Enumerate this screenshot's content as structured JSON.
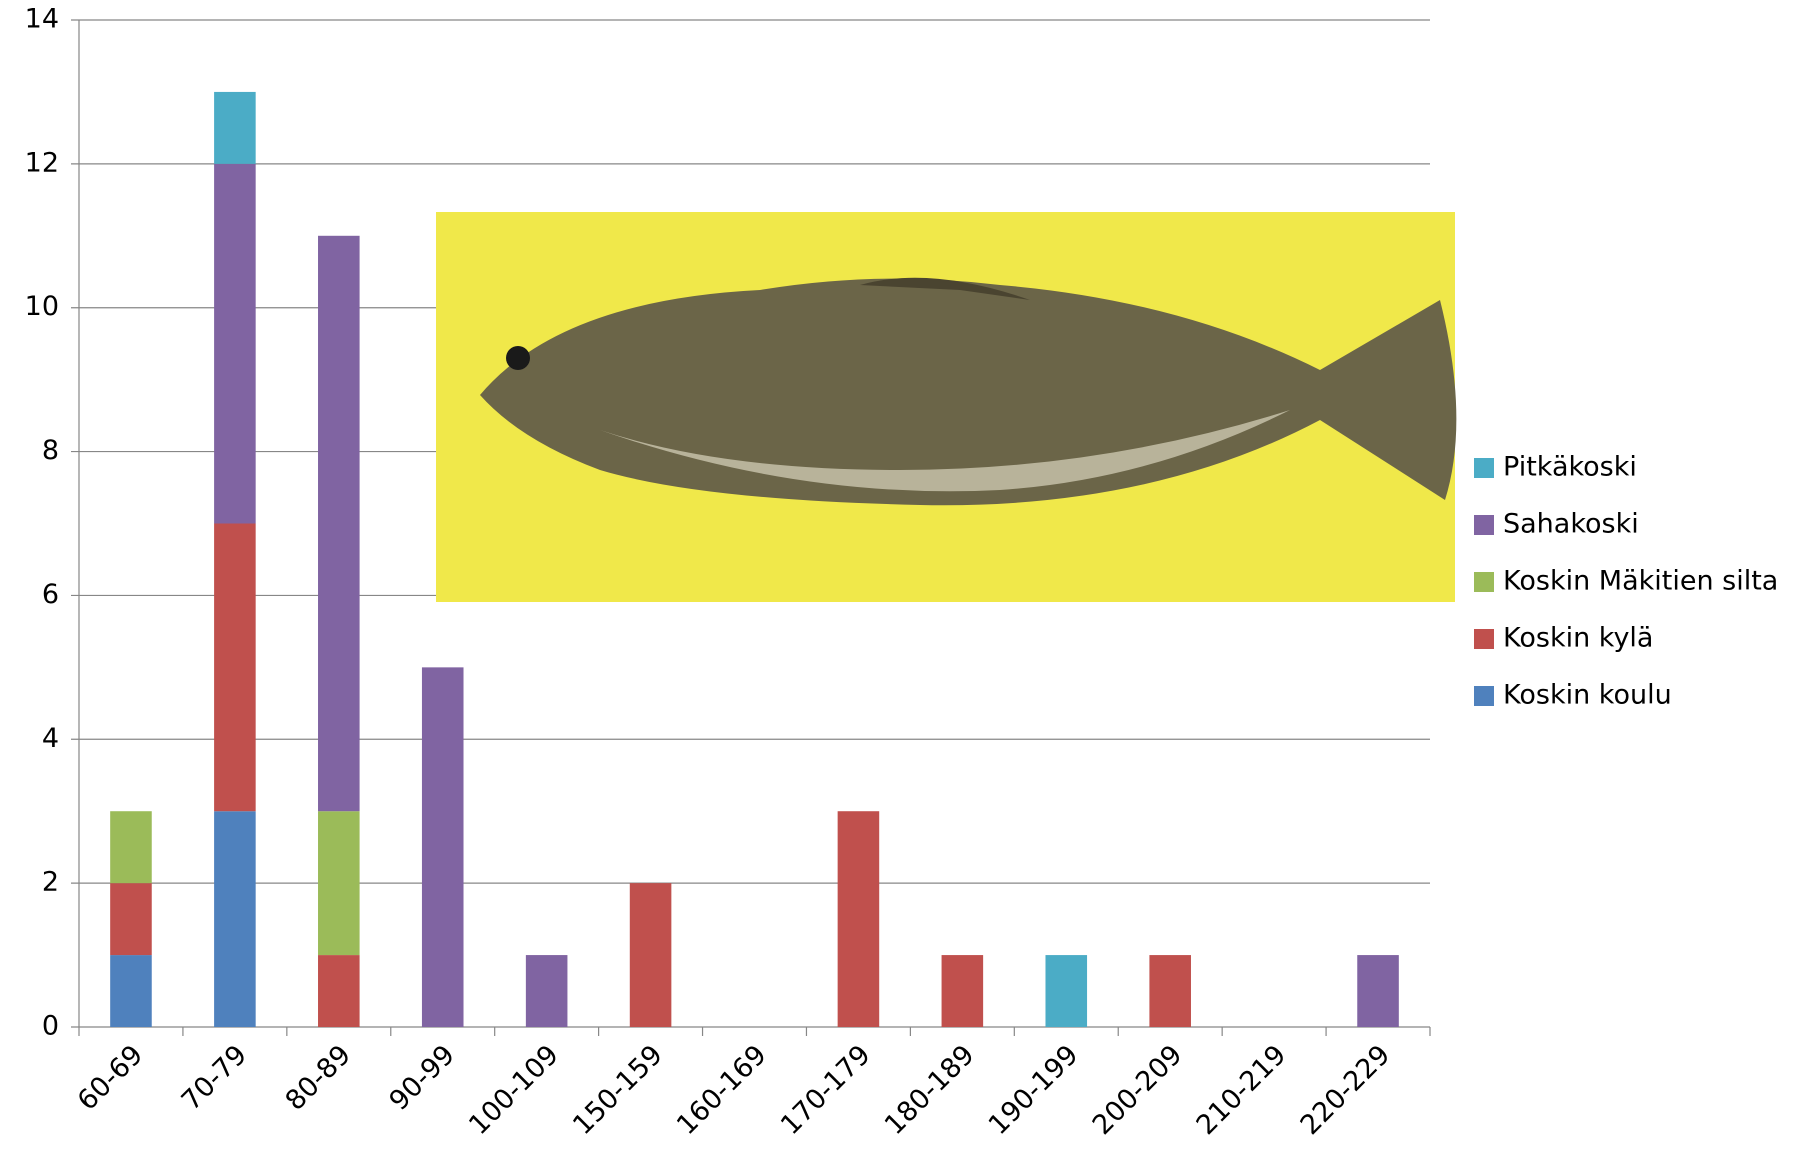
{
  "chart_data": {
    "type": "bar",
    "stacked": true,
    "categories": [
      "60-69",
      "70-79",
      "80-89",
      "90-99",
      "100-109",
      "150-159",
      "160-169",
      "170-179",
      "180-189",
      "190-199",
      "200-209",
      "210-219",
      "220-229"
    ],
    "series": [
      {
        "name": "Koskin koulu",
        "color": "#4f81bd",
        "values": [
          1,
          3,
          0,
          0,
          0,
          0,
          0,
          0,
          0,
          0,
          0,
          0,
          0
        ]
      },
      {
        "name": "Koskin kylä",
        "color": "#c0504d",
        "values": [
          1,
          4,
          1,
          0,
          0,
          2,
          0,
          3,
          1,
          0,
          1,
          0,
          0
        ]
      },
      {
        "name": "Koskin Mäkitien silta",
        "color": "#9bbb59",
        "values": [
          1,
          0,
          2,
          0,
          0,
          0,
          0,
          0,
          0,
          0,
          0,
          0,
          0
        ]
      },
      {
        "name": "Sahakoski",
        "color": "#8064a2",
        "values": [
          0,
          5,
          8,
          5,
          1,
          0,
          0,
          0,
          0,
          0,
          0,
          0,
          1
        ]
      },
      {
        "name": "Pitkäkoski",
        "color": "#4bacc6",
        "values": [
          0,
          1,
          0,
          0,
          0,
          0,
          0,
          0,
          0,
          1,
          0,
          0,
          0
        ]
      }
    ],
    "ylim": [
      0,
      14
    ],
    "yticks": [
      0,
      2,
      4,
      6,
      8,
      10,
      12,
      14
    ],
    "grid": true,
    "legend": "right"
  }
}
